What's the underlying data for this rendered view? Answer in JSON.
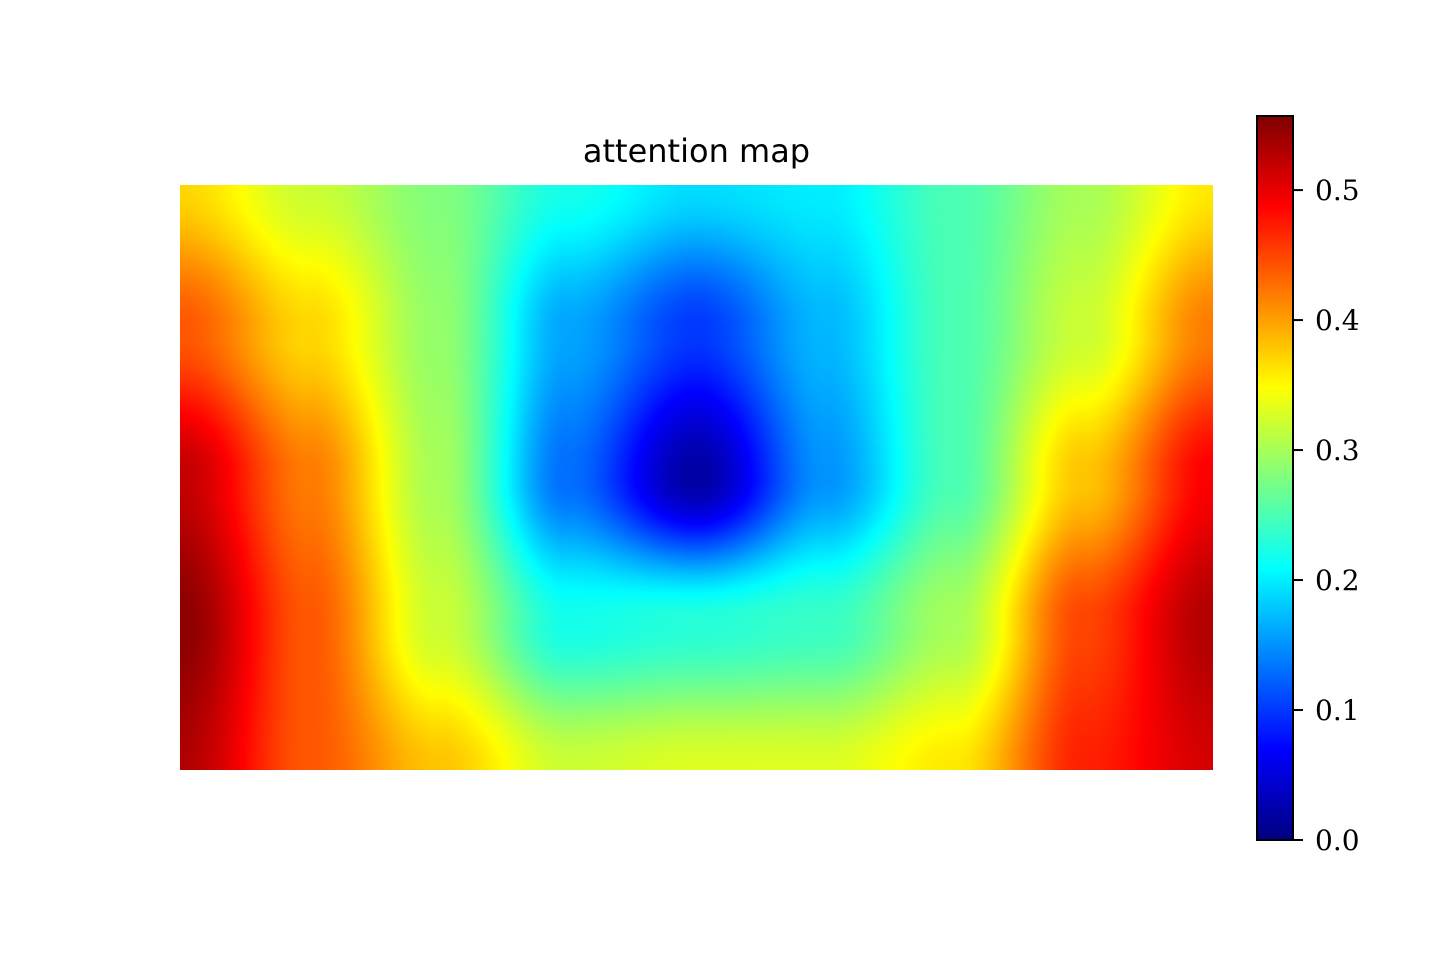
{
  "chart_data": {
    "type": "heatmap",
    "title": "attention map",
    "xlabel": "",
    "ylabel": "",
    "grid": false,
    "axes_visible": false,
    "colormap": "jet",
    "colormap_stops": [
      "#00007f",
      "#0000ff",
      "#007fff",
      "#00ffff",
      "#7fff7f",
      "#ffff00",
      "#ff7f00",
      "#ff0000",
      "#7f0000"
    ],
    "colorbar": {
      "position": "right",
      "range": [
        0.0,
        0.557
      ],
      "ticks": [
        0.0,
        0.1,
        0.2,
        0.3,
        0.4,
        0.5
      ],
      "tick_labels": [
        "0.0",
        "0.1",
        "0.2",
        "0.3",
        "0.4",
        "0.5"
      ]
    },
    "grid_size": {
      "cols": 9,
      "rows": 5
    },
    "values": [
      [
        0.37,
        0.32,
        0.28,
        0.22,
        0.19,
        0.2,
        0.25,
        0.3,
        0.36
      ],
      [
        0.44,
        0.37,
        0.29,
        0.16,
        0.1,
        0.17,
        0.25,
        0.32,
        0.42
      ],
      [
        0.52,
        0.42,
        0.3,
        0.13,
        0.02,
        0.15,
        0.25,
        0.38,
        0.49
      ],
      [
        0.55,
        0.44,
        0.32,
        0.22,
        0.23,
        0.24,
        0.3,
        0.45,
        0.53
      ],
      [
        0.53,
        0.44,
        0.38,
        0.32,
        0.33,
        0.33,
        0.36,
        0.47,
        0.51
      ]
    ]
  }
}
